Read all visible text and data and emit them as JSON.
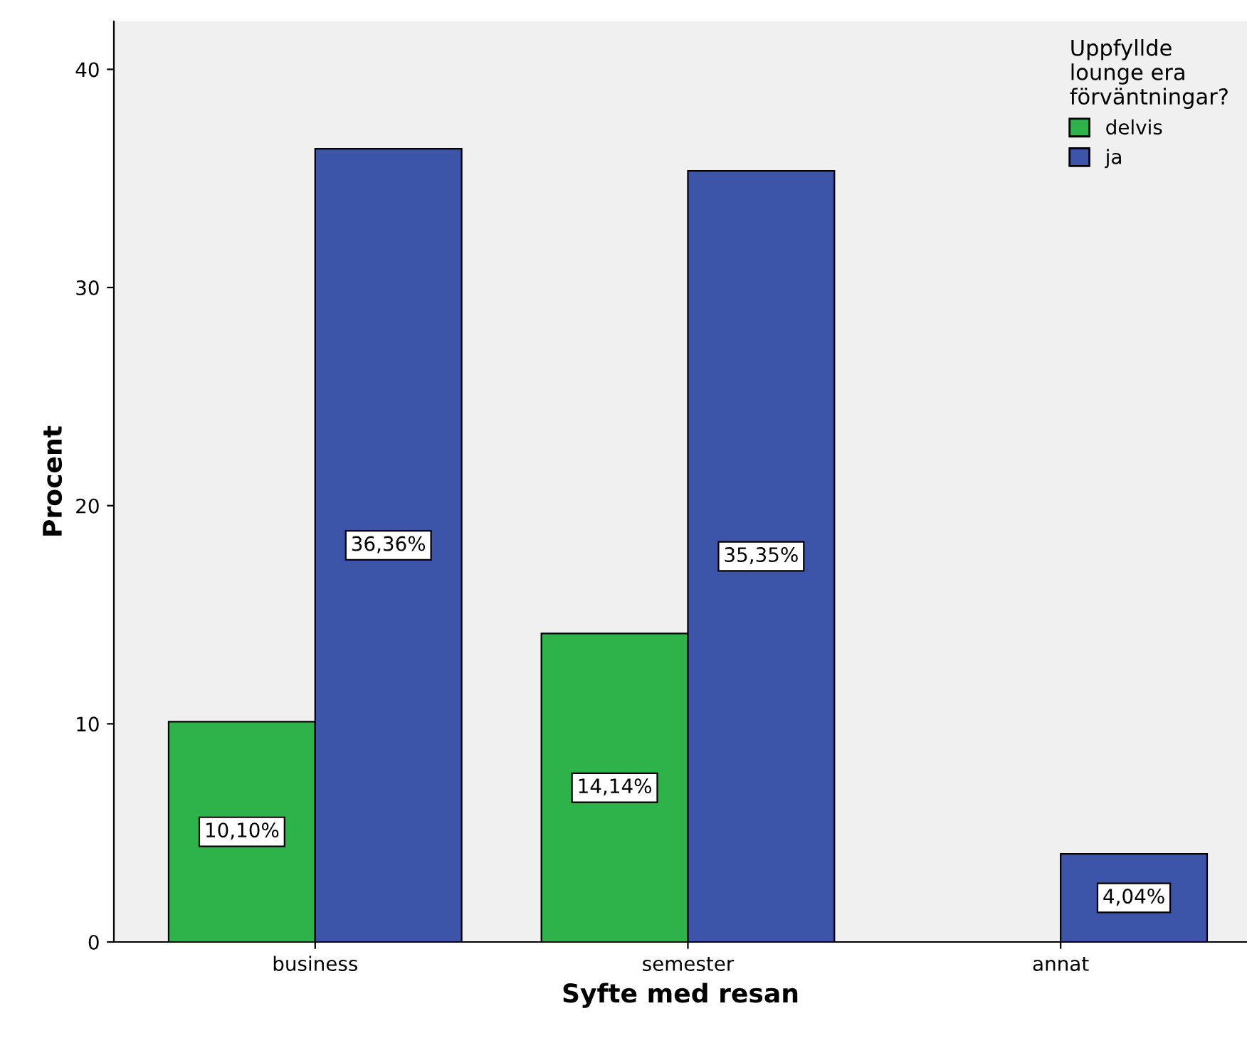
{
  "chart_data": {
    "type": "bar",
    "xlabel": "Syfte med resan",
    "ylabel": "Procent",
    "categories": [
      "business",
      "semester",
      "annat"
    ],
    "series": [
      {
        "name": "delvis",
        "color": "#2db34a",
        "values": [
          10.1,
          14.14,
          null
        ],
        "value_labels": [
          "10,10%",
          "14,14%",
          null
        ]
      },
      {
        "name": "ja",
        "color": "#3c55a8",
        "values": [
          36.36,
          35.35,
          4.04
        ],
        "value_labels": [
          "36,36%",
          "35,35%",
          "4,04%"
        ]
      }
    ],
    "ylim": [
      0,
      42.2
    ],
    "yticks": [
      0,
      10,
      20,
      30,
      40
    ],
    "grid": false,
    "legend": "top right",
    "legend_title": "Uppfyllde\nlounge era\nförväntningar?"
  }
}
